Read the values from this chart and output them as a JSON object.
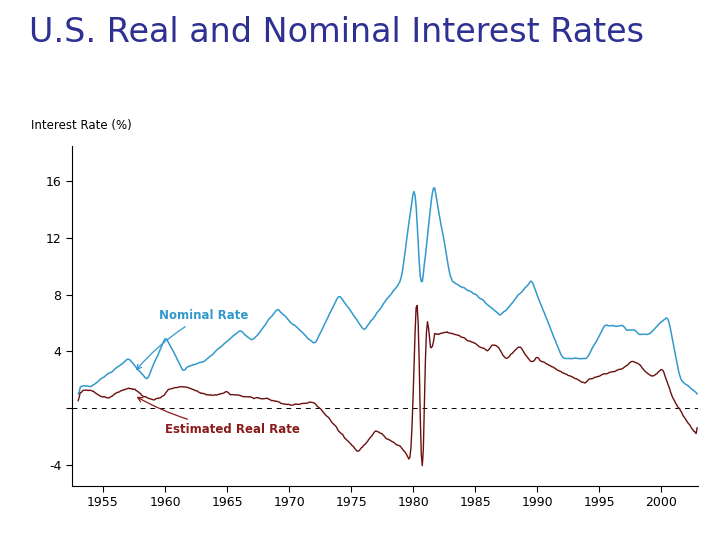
{
  "title": "U.S. Real and Nominal Interest Rates",
  "title_color": "#2e3192",
  "title_fontsize": 24,
  "ylabel": "Interest Rate (%)",
  "ylabel_fontsize": 8.5,
  "nominal_color": "#3399cc",
  "real_color": "#6b1010",
  "nominal_label": "Nominal Rate",
  "real_label": "Estimated Real Rate",
  "nominal_label_color": "#3399cc",
  "real_label_color": "#8b1a1a",
  "background_color": "#ffffff",
  "yticks": [
    -4,
    0,
    4,
    8,
    12,
    16
  ],
  "xlim_start": 1952.5,
  "xlim_end": 2003,
  "ylim": [
    -5.5,
    18.5
  ],
  "xticks": [
    1955,
    1960,
    1965,
    1970,
    1975,
    1980,
    1985,
    1990,
    1995,
    2000
  ]
}
